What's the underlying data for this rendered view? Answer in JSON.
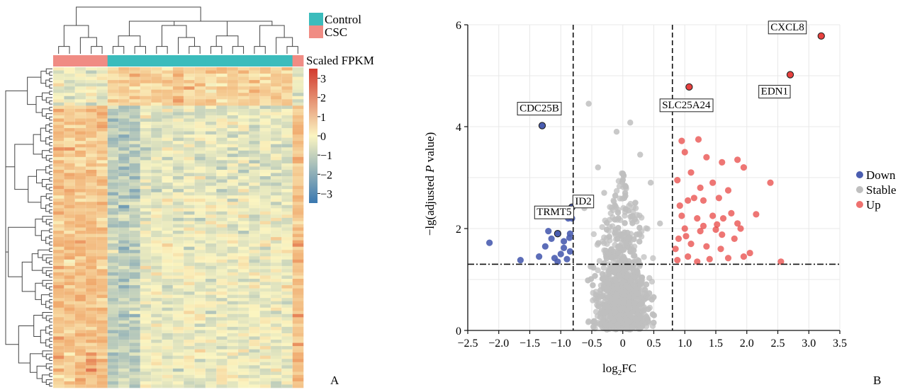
{
  "panels": {
    "heatmap_label": "A",
    "volcano_label": "B"
  },
  "colors": {
    "control": "#3bbcbc",
    "csc": "#f08c84",
    "down": "#4a5db0",
    "stable": "#bfbfbf",
    "up": "#e8413f",
    "heat_high": "#d23a2e",
    "heat_mid": "#fbf5c1",
    "heat_low": "#3a78b0"
  },
  "chart_data": [
    {
      "type": "heatmap",
      "title": "",
      "group_legend": [
        {
          "name": "Control",
          "color": "#3bbcbc"
        },
        {
          "name": "CSC",
          "color": "#f08c84"
        }
      ],
      "column_groups": [
        "CSC",
        "CSC",
        "CSC",
        "CSC",
        "CSC",
        "Control",
        "Control",
        "Control",
        "Control",
        "Control",
        "Control",
        "Control",
        "Control",
        "Control",
        "Control",
        "Control",
        "Control",
        "Control",
        "Control",
        "Control",
        "Control",
        "Control",
        "CSC"
      ],
      "n_rows": 100,
      "n_columns": 23,
      "color_scale": {
        "title": "Scaled FPKM",
        "ticks": [
          "3",
          "2",
          "1",
          "0",
          "−1",
          "−2",
          "−3"
        ],
        "range": [
          -3.5,
          3.5
        ]
      },
      "dendrograms": {
        "columns": true,
        "rows": true
      }
    },
    {
      "type": "scatter",
      "title": "",
      "xlabel_main": "log",
      "xlabel_sub": "2",
      "xlabel_tail": "FC",
      "ylabel_a": "−lg(adjusted ",
      "ylabel_b": "P",
      "ylabel_c": " value)",
      "xlim": [
        -2.5,
        3.5
      ],
      "ylim": [
        0,
        6
      ],
      "x_ticks": [
        "−2.5",
        "−2.0",
        "−1.5",
        "−1.0",
        "−0.5",
        "0",
        "0.5",
        "1.0",
        "1.5",
        "2.0",
        "2.5",
        "3.0",
        "3.5"
      ],
      "y_ticks": [
        "0",
        "2",
        "4",
        "6"
      ],
      "grid": true,
      "thresholds": {
        "x": [
          -0.8,
          0.8
        ],
        "y": 1.3
      },
      "legend": {
        "position": "right",
        "entries": [
          "Down",
          "Stable",
          "Up"
        ]
      },
      "series": [
        {
          "name": "Down",
          "points": [
            [
              -2.15,
              1.72
            ],
            [
              -1.65,
              1.38
            ],
            [
              -1.3,
              4.02
            ],
            [
              -0.82,
              2.42
            ],
            [
              -0.82,
              2.2
            ],
            [
              -0.88,
              2.2
            ],
            [
              -1.05,
              1.9
            ],
            [
              -1.15,
              1.8
            ],
            [
              -1.25,
              1.65
            ],
            [
              -0.95,
              1.75
            ],
            [
              -0.85,
              1.55
            ],
            [
              -1.0,
              1.5
            ],
            [
              -1.35,
              1.45
            ],
            [
              -0.9,
              1.4
            ],
            [
              -1.1,
              1.42
            ],
            [
              -0.85,
              1.9
            ],
            [
              -0.95,
              1.62
            ],
            [
              -1.2,
              1.95
            ],
            [
              -0.86,
              1.82
            ],
            [
              -1.05,
              1.35
            ]
          ]
        },
        {
          "name": "Up",
          "points": [
            [
              3.2,
              5.78
            ],
            [
              2.7,
              5.02
            ],
            [
              1.07,
              4.78
            ],
            [
              0.95,
              3.72
            ],
            [
              1.22,
              3.75
            ],
            [
              1.0,
              3.5
            ],
            [
              1.35,
              3.4
            ],
            [
              1.6,
              3.3
            ],
            [
              1.85,
              3.35
            ],
            [
              1.95,
              3.2
            ],
            [
              2.38,
              2.9
            ],
            [
              1.1,
              3.1
            ],
            [
              1.25,
              2.8
            ],
            [
              1.45,
              2.9
            ],
            [
              1.7,
              2.75
            ],
            [
              0.88,
              2.95
            ],
            [
              1.05,
              2.55
            ],
            [
              1.3,
              2.55
            ],
            [
              1.55,
              2.6
            ],
            [
              1.75,
              2.3
            ],
            [
              2.15,
              2.28
            ],
            [
              0.95,
              2.25
            ],
            [
              1.2,
              2.2
            ],
            [
              1.45,
              2.25
            ],
            [
              1.62,
              2.2
            ],
            [
              1.9,
              2.0
            ],
            [
              1.0,
              2.0
            ],
            [
              1.25,
              1.95
            ],
            [
              1.5,
              1.98
            ],
            [
              1.8,
              1.8
            ],
            [
              0.9,
              1.8
            ],
            [
              1.1,
              1.7
            ],
            [
              1.35,
              1.65
            ],
            [
              1.58,
              1.6
            ],
            [
              2.05,
              1.52
            ],
            [
              0.85,
              1.6
            ],
            [
              1.05,
              1.45
            ],
            [
              1.4,
              1.4
            ],
            [
              1.7,
              1.42
            ],
            [
              1.95,
              1.45
            ],
            [
              0.88,
              1.38
            ],
            [
              1.2,
              1.35
            ],
            [
              2.55,
              1.35
            ],
            [
              1.6,
              1.88
            ],
            [
              1.3,
              2.05
            ],
            [
              0.92,
              2.45
            ],
            [
              1.15,
              2.6
            ],
            [
              1.52,
              2.08
            ],
            [
              1.02,
              1.85
            ],
            [
              1.85,
              2.1
            ]
          ]
        }
      ],
      "stable_points_note": "dense gray cloud around x=0 below the thresholds",
      "annotations": [
        {
          "label": "CXCL8",
          "x": 3.2,
          "y": 5.78
        },
        {
          "label": "EDN1",
          "x": 2.7,
          "y": 5.02
        },
        {
          "label": "SLC25A24",
          "x": 1.07,
          "y": 4.78
        },
        {
          "label": "CDC25B",
          "x": -1.3,
          "y": 4.02
        },
        {
          "label": "ID2",
          "x": -0.82,
          "y": 2.42
        },
        {
          "label": "TRMT5",
          "x": -1.05,
          "y": 1.9
        }
      ]
    }
  ]
}
